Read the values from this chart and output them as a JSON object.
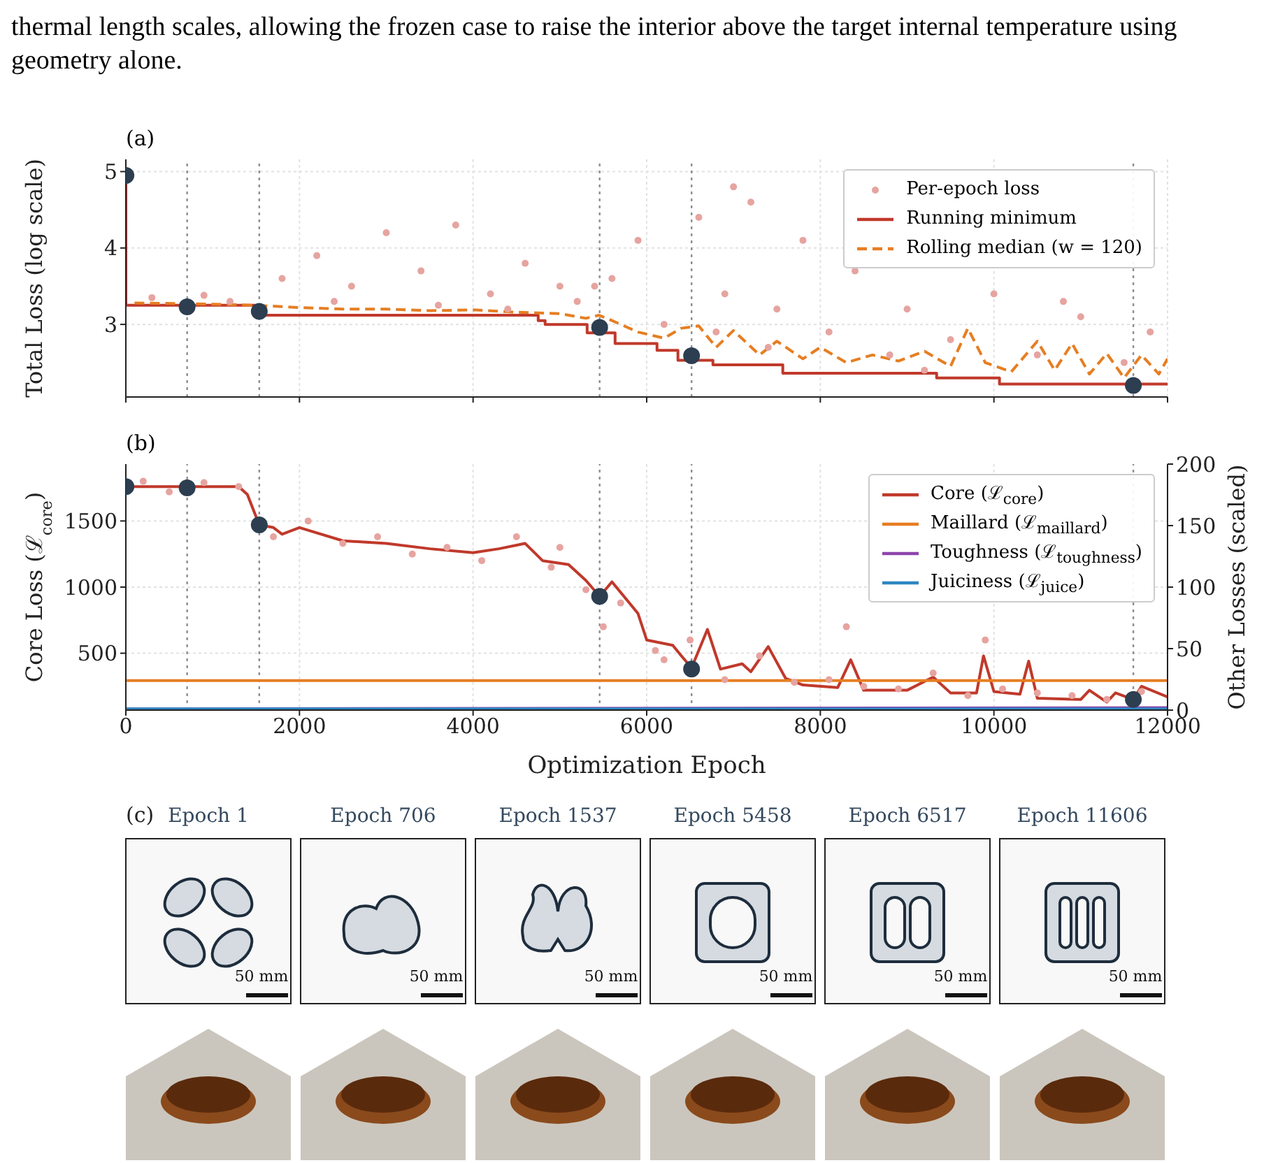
{
  "chart_data": [
    {
      "type": "line",
      "title": "(a)",
      "ylabel": "Total Loss (log scale)",
      "annotations": [
        "thermal length scales, allowing the frozen case to raise the interior above the target internal temperature using geometry alone."
      ],
      "xlim": [
        0,
        12000
      ],
      "xticks": [
        0,
        2000,
        4000,
        6000,
        8000,
        10000,
        12000
      ],
      "ylim": [
        2.05,
        5.16
      ],
      "yticks": [
        3,
        4,
        5
      ],
      "tick_labels": "y",
      "grid": true,
      "legend": "top right",
      "ref_lines": [
        {
          "axis": "x",
          "value": 706,
          "color": "#8a8f96",
          "line_style": "dotted"
        },
        {
          "axis": "x",
          "value": 1537,
          "color": "#8a8f96",
          "line_style": "dotted"
        },
        {
          "axis": "x",
          "value": 5458,
          "color": "#8a8f96",
          "line_style": "dotted"
        },
        {
          "axis": "x",
          "value": 6517,
          "color": "#8a8f96",
          "line_style": "dotted"
        },
        {
          "axis": "x",
          "value": 11606,
          "color": "#8a8f96",
          "line_style": "dotted"
        }
      ],
      "series": [
        {
          "name": "Per-epoch loss",
          "type": "scatter",
          "color": "#e6a4a0",
          "x": [
            300,
            900,
            1200,
            1800,
            2200,
            2600,
            3000,
            3400,
            3800,
            4200,
            4600,
            5000,
            5200,
            5600,
            5900,
            6200,
            6600,
            6900,
            7200,
            7500,
            7800,
            8100,
            8400,
            2400,
            3600,
            4400,
            5400,
            6800,
            7400,
            7000,
            9000,
            9500,
            10000,
            10500,
            11000,
            11500,
            9200,
            10800,
            11800,
            8800
          ],
          "values": [
            3.35,
            3.38,
            3.3,
            3.6,
            3.9,
            3.5,
            4.2,
            3.7,
            4.3,
            3.4,
            3.8,
            3.5,
            3.3,
            3.6,
            4.1,
            3.0,
            4.4,
            3.4,
            4.6,
            3.2,
            4.1,
            2.9,
            3.7,
            3.3,
            3.25,
            3.2,
            3.5,
            2.9,
            2.7,
            4.8,
            3.2,
            2.8,
            3.4,
            2.6,
            3.1,
            2.5,
            2.4,
            3.3,
            2.9,
            2.6
          ]
        },
        {
          "name": "Running minimum",
          "type": "step",
          "color": "#c0392b",
          "x": [
            0,
            1,
            1490,
            4750,
            4830,
            5314,
            5636,
            6119,
            6360,
            6763,
            7568,
            9340,
            10064,
            12000
          ],
          "values": [
            4.95,
            3.25,
            3.12,
            3.05,
            3.0,
            2.89,
            2.75,
            2.66,
            2.53,
            2.47,
            2.36,
            2.3,
            2.22,
            2.22
          ]
        },
        {
          "name": "Rolling median (w = 120)",
          "type": "line",
          "line_style": "dashed",
          "color": "#e67e22",
          "x": [
            100,
            800,
            1500,
            2000,
            2500,
            3000,
            3500,
            4000,
            4500,
            5000,
            5300,
            5450,
            5600,
            5900,
            6200,
            6400,
            6600,
            6800,
            7000,
            7300,
            7500,
            7800,
            8000,
            8300,
            8600,
            8900,
            9200,
            9500,
            9700,
            9900,
            10200,
            10500,
            10700,
            10900,
            11100,
            11300,
            11500,
            11700,
            11900,
            12000
          ],
          "values": [
            3.28,
            3.27,
            3.25,
            3.22,
            3.2,
            3.2,
            3.18,
            3.19,
            3.16,
            3.14,
            3.08,
            3.12,
            3.05,
            2.9,
            2.82,
            2.95,
            2.98,
            2.7,
            2.92,
            2.6,
            2.78,
            2.55,
            2.7,
            2.5,
            2.6,
            2.52,
            2.65,
            2.45,
            2.95,
            2.5,
            2.38,
            2.78,
            2.4,
            2.75,
            2.35,
            2.62,
            2.3,
            2.6,
            2.35,
            2.55
          ]
        },
        {
          "type": "scatter",
          "marker": "circle",
          "color": "#2c3e50",
          "x": [
            1,
            706,
            1537,
            5458,
            6517,
            11606
          ],
          "values": [
            4.95,
            3.23,
            3.17,
            2.96,
            2.59,
            2.2
          ]
        }
      ]
    },
    {
      "type": "line",
      "title": "(b)",
      "xlabel": "Optimization Epoch",
      "ylabel": "Core Loss (ℒ$_{core}$)",
      "y2label": "Other Losses (scaled)",
      "xlim": [
        0,
        12000
      ],
      "xticks": [
        0,
        2000,
        4000,
        6000,
        8000,
        10000,
        12000
      ],
      "ylim": [
        70,
        1930
      ],
      "yticks": [
        500,
        1000,
        1500
      ],
      "y2lim": [
        0,
        200
      ],
      "y2ticks": [
        0,
        50,
        100,
        150,
        200
      ],
      "grid": true,
      "legend": "top right",
      "ref_lines": [
        {
          "axis": "x",
          "value": 706,
          "color": "#8a8f96",
          "line_style": "dotted"
        },
        {
          "axis": "x",
          "value": 1537,
          "color": "#8a8f96",
          "line_style": "dotted"
        },
        {
          "axis": "x",
          "value": 5458,
          "color": "#8a8f96",
          "line_style": "dotted"
        },
        {
          "axis": "x",
          "value": 6517,
          "color": "#8a8f96",
          "line_style": "dotted"
        },
        {
          "axis": "x",
          "value": 11606,
          "color": "#8a8f96",
          "line_style": "dotted"
        }
      ],
      "series": [
        {
          "type": "scatter",
          "color": "#e6a4a0",
          "x": [
            200,
            500,
            900,
            1300,
            1700,
            2100,
            2500,
            2900,
            3300,
            3700,
            4100,
            4500,
            4900,
            5300,
            5700,
            6100,
            6500,
            6900,
            7300,
            7700,
            8100,
            8500,
            8900,
            9300,
            9700,
            10100,
            10500,
            10900,
            11300,
            11700,
            5000,
            5500,
            6200,
            8300,
            9900
          ],
          "values": [
            1800,
            1720,
            1790,
            1760,
            1380,
            1500,
            1330,
            1380,
            1250,
            1300,
            1200,
            1380,
            1150,
            980,
            880,
            520,
            600,
            300,
            480,
            280,
            300,
            250,
            230,
            350,
            180,
            230,
            200,
            180,
            150,
            210,
            1300,
            700,
            450,
            700,
            600
          ]
        },
        {
          "name": "Core (ℒ$_{core}$)",
          "type": "line",
          "color": "#c0392b",
          "x": [
            0,
            1300,
            1400,
            1537,
            1700,
            1800,
            2000,
            2500,
            3000,
            3500,
            4000,
            4300,
            4600,
            4800,
            5100,
            5300,
            5458,
            5600,
            5900,
            6000,
            6300,
            6400,
            6517,
            6700,
            6850,
            7100,
            7200,
            7400,
            7600,
            7800,
            8200,
            8350,
            8500,
            9000,
            9300,
            9500,
            9800,
            9880,
            10000,
            10300,
            10400,
            10500,
            11000,
            11100,
            11300,
            11400,
            11606,
            11700,
            12000
          ],
          "values": [
            1760,
            1760,
            1700,
            1470,
            1450,
            1400,
            1450,
            1350,
            1330,
            1290,
            1260,
            1290,
            1330,
            1200,
            1170,
            1050,
            930,
            1040,
            800,
            600,
            560,
            480,
            390,
            680,
            380,
            420,
            360,
            550,
            310,
            260,
            240,
            450,
            220,
            220,
            320,
            200,
            200,
            480,
            210,
            190,
            440,
            160,
            150,
            220,
            130,
            200,
            150,
            250,
            170
          ]
        },
        {
          "name": "Maillard (ℒ$_{maillard}$)",
          "type": "line",
          "axis": "y2",
          "color": "#e67e22",
          "x": [
            0,
            12000
          ],
          "values": [
            24,
            24
          ]
        },
        {
          "name": "Toughness (ℒ$_{toughness}$)",
          "type": "line",
          "axis": "y2",
          "color": "#8e44ad",
          "x": [
            0,
            12000
          ],
          "values": [
            1,
            2
          ]
        },
        {
          "name": "Juiciness (ℒ$_{juice}$)",
          "type": "line",
          "axis": "y2",
          "color": "#2e86c1",
          "x": [
            0,
            12000
          ],
          "values": [
            1,
            1
          ]
        },
        {
          "type": "scatter",
          "marker": "circle",
          "color": "#2c3e50",
          "x": [
            1,
            706,
            1537,
            5458,
            6517,
            11606
          ],
          "values": [
            1760,
            1750,
            1470,
            930,
            380,
            150
          ]
        }
      ]
    },
    {
      "type": "other",
      "title": "(c)",
      "annotations": [
        "Epoch 1",
        "Epoch 706",
        "Epoch 1537",
        "Epoch 5458",
        "Epoch 6517",
        "Epoch 11606",
        "50 mm",
        "50 mm",
        "50 mm",
        "50 mm",
        "50 mm",
        "50 mm"
      ]
    }
  ]
}
